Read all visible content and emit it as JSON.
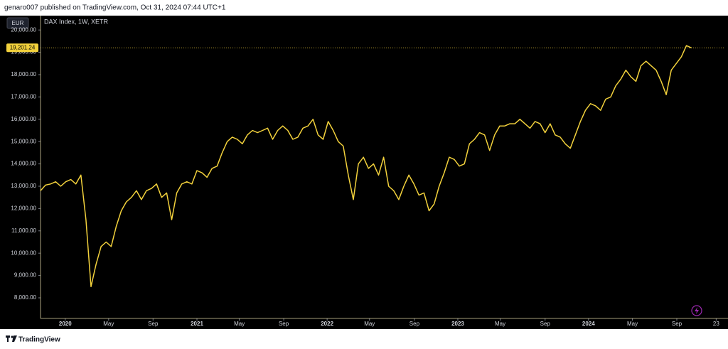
{
  "header": {
    "text": "genaro007 published on TradingView.com, Oct 31, 2024 07:44 UTC+1"
  },
  "footer": {
    "brand": "TradingView"
  },
  "chart_data": {
    "type": "line",
    "title": "DAX Index, 1W, XETR",
    "currency": "EUR",
    "price_label": "19,201.24",
    "color": "#f2d13c",
    "ylim": [
      7076,
      20643
    ],
    "yticks": [
      {
        "value": 8000,
        "label": "8,000.00"
      },
      {
        "value": 9000,
        "label": "9,000.00"
      },
      {
        "value": 10000,
        "label": "10,000.00"
      },
      {
        "value": 11000,
        "label": "11,000.00"
      },
      {
        "value": 12000,
        "label": "12,000.00"
      },
      {
        "value": 13000,
        "label": "13,000.00"
      },
      {
        "value": 14000,
        "label": "14,000.00"
      },
      {
        "value": 15000,
        "label": "15,000.00"
      },
      {
        "value": 16000,
        "label": "16,000.00"
      },
      {
        "value": 17000,
        "label": "17,000.00"
      },
      {
        "value": 18000,
        "label": "18,000.00"
      },
      {
        "value": 19000,
        "label": "19,000.00"
      },
      {
        "value": 20000,
        "label": "20,000.00"
      }
    ],
    "xlim": [
      0,
      135.4
    ],
    "xticks": [
      {
        "value": 4.9,
        "label": "2020"
      },
      {
        "value": 13.5,
        "label": "May"
      },
      {
        "value": 22.3,
        "label": "Sep"
      },
      {
        "value": 31.0,
        "label": "2021"
      },
      {
        "value": 39.4,
        "label": "May"
      },
      {
        "value": 48.2,
        "label": "Sep"
      },
      {
        "value": 56.8,
        "label": "2022"
      },
      {
        "value": 65.2,
        "label": "May"
      },
      {
        "value": 74.1,
        "label": "Sep"
      },
      {
        "value": 82.7,
        "label": "2023"
      },
      {
        "value": 91.1,
        "label": "May"
      },
      {
        "value": 100.0,
        "label": "Sep"
      },
      {
        "value": 108.6,
        "label": "2024"
      },
      {
        "value": 117.3,
        "label": "May"
      },
      {
        "value": 126.1,
        "label": "Sep"
      },
      {
        "value": 133.9,
        "label": "23"
      }
    ],
    "values": [
      12800,
      13050,
      13100,
      13200,
      13000,
      13200,
      13300,
      13100,
      13500,
      11500,
      8500,
      9500,
      10300,
      10500,
      10300,
      11200,
      11900,
      12300,
      12500,
      12800,
      12400,
      12800,
      12900,
      13100,
      12500,
      12700,
      11500,
      12700,
      13100,
      13200,
      13100,
      13700,
      13600,
      13400,
      13800,
      13900,
      14500,
      15000,
      15200,
      15100,
      14900,
      15300,
      15500,
      15400,
      15500,
      15600,
      15100,
      15500,
      15700,
      15500,
      15100,
      15200,
      15600,
      15700,
      16000,
      15300,
      15100,
      15900,
      15500,
      15000,
      14800,
      13500,
      12400,
      14000,
      14300,
      13800,
      14000,
      13500,
      14300,
      13000,
      12800,
      12400,
      13000,
      13500,
      13100,
      12600,
      12700,
      11900,
      12200,
      13000,
      13600,
      14300,
      14200,
      13900,
      14000,
      14900,
      15100,
      15400,
      15300,
      14600,
      15300,
      15700,
      15700,
      15800,
      15800,
      16000,
      15800,
      15600,
      15900,
      15800,
      15400,
      15800,
      15300,
      15200,
      14900,
      14700,
      15300,
      15900,
      16400,
      16700,
      16600,
      16400,
      16900,
      17000,
      17500,
      17800,
      18200,
      17900,
      17700,
      18400,
      18600,
      18400,
      18200,
      17700,
      17100,
      18200,
      18500,
      18800,
      19300,
      19201.24
    ]
  }
}
